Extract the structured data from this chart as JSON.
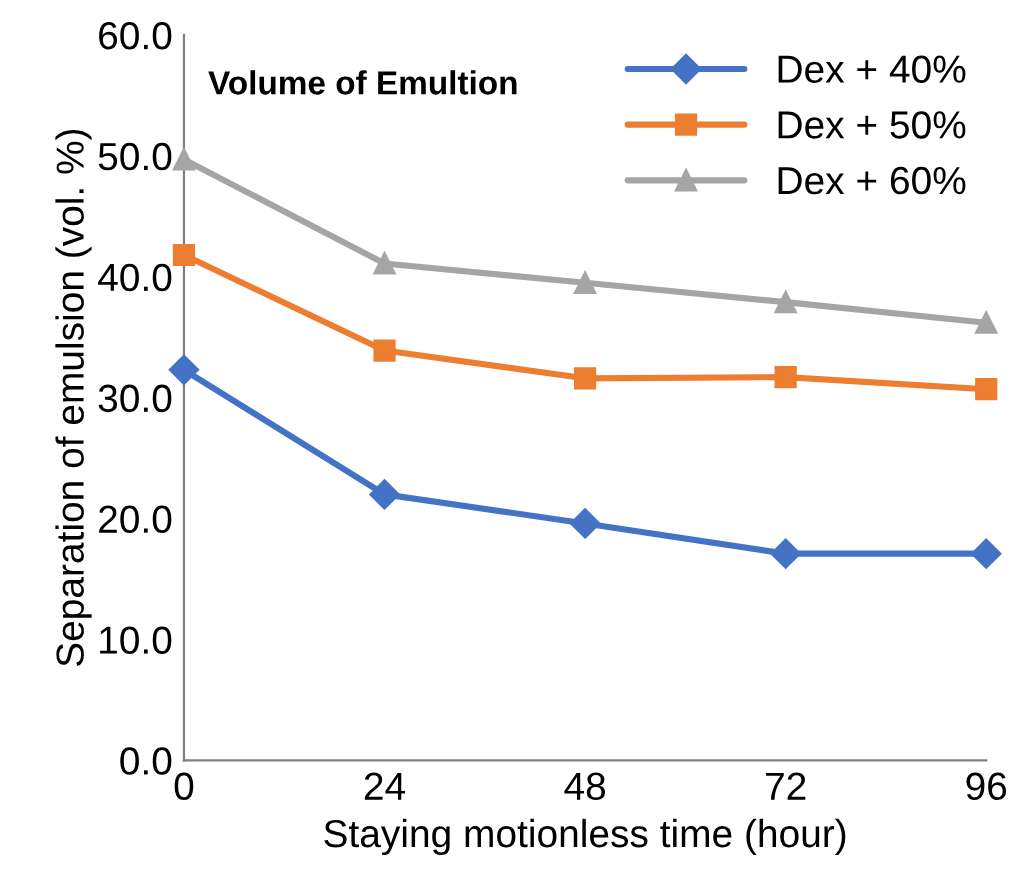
{
  "chart_data": {
    "type": "line",
    "title": "Volume of Emultion",
    "xlabel": "Staying motionless time (hour)",
    "ylabel": "Separation of emulsion (vol. %)",
    "x": [
      0,
      24,
      48,
      72,
      96
    ],
    "series": [
      {
        "name": "Dex + 40%",
        "color": "#4472c4",
        "values": [
          32.3,
          22.0,
          19.6,
          17.1,
          17.1
        ],
        "marker": "diamond"
      },
      {
        "name": "Dex + 50%",
        "color": "#ed7d31",
        "values": [
          41.8,
          33.9,
          31.6,
          31.7,
          30.7
        ],
        "marker": "square"
      },
      {
        "name": "Dex + 60%",
        "color": "#a5a5a5",
        "values": [
          49.7,
          41.1,
          39.5,
          37.9,
          36.2
        ],
        "marker": "triangle"
      }
    ],
    "xlim": [
      0,
      96
    ],
    "xticks": [
      0,
      24,
      48,
      72,
      96
    ],
    "ylim": [
      0,
      60
    ],
    "yticks": [
      {
        "value": 0,
        "label": "0.0"
      },
      {
        "value": 10,
        "label": "10.0"
      },
      {
        "value": 20,
        "label": "20.0"
      },
      {
        "value": 30,
        "label": "30.0"
      },
      {
        "value": 40,
        "label": "40.0"
      },
      {
        "value": 50,
        "label": "50.0"
      },
      {
        "value": 60,
        "label": "60.0"
      }
    ],
    "grid": false,
    "legend": "top right",
    "line_style": "solid"
  }
}
